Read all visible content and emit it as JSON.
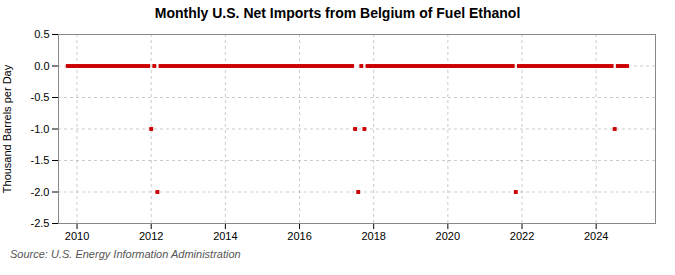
{
  "chart_data": {
    "type": "scatter",
    "title": "Monthly U.S. Net Imports from Belgium of Fuel Ethanol",
    "ylabel": "Thousand Barrels per Day",
    "source": "Source: U.S. Energy Information Administration",
    "color": "#cc0000",
    "marker": "square",
    "grid": true,
    "xlim": [
      2009.5,
      2025.6
    ],
    "xticks": [
      2010,
      2012,
      2014,
      2016,
      2018,
      2020,
      2022,
      2024
    ],
    "ylim": [
      -2.5,
      0.5
    ],
    "yticks": [
      0.5,
      {
        "value": 0.0,
        "label": "0.0"
      },
      -0.5,
      {
        "value": -1.0,
        "label": "-1.0"
      },
      -1.5,
      {
        "value": -2.0,
        "label": "-2.0"
      },
      -2.5
    ],
    "x": [
      2009.75,
      2009.833,
      2009.917,
      2010.0,
      2010.083,
      2010.167,
      2010.25,
      2010.333,
      2010.417,
      2010.5,
      2010.583,
      2010.667,
      2010.75,
      2010.833,
      2010.917,
      2011.0,
      2011.083,
      2011.167,
      2011.25,
      2011.333,
      2011.417,
      2011.5,
      2011.583,
      2011.667,
      2011.75,
      2011.833,
      2011.917,
      2012.0,
      2012.083,
      2012.167,
      2012.25,
      2012.333,
      2012.417,
      2012.5,
      2012.583,
      2012.667,
      2012.75,
      2012.833,
      2012.917,
      2013.0,
      2013.083,
      2013.167,
      2013.25,
      2013.333,
      2013.417,
      2013.5,
      2013.583,
      2013.667,
      2013.75,
      2013.833,
      2013.917,
      2014.0,
      2014.083,
      2014.167,
      2014.25,
      2014.333,
      2014.417,
      2014.5,
      2014.583,
      2014.667,
      2014.75,
      2014.833,
      2014.917,
      2015.0,
      2015.083,
      2015.167,
      2015.25,
      2015.333,
      2015.417,
      2015.5,
      2015.583,
      2015.667,
      2015.75,
      2015.833,
      2015.917,
      2016.0,
      2016.083,
      2016.167,
      2016.25,
      2016.333,
      2016.417,
      2016.5,
      2016.583,
      2016.667,
      2016.75,
      2016.833,
      2016.917,
      2017.0,
      2017.083,
      2017.167,
      2017.25,
      2017.333,
      2017.417,
      2017.5,
      2017.583,
      2017.667,
      2017.75,
      2017.833,
      2017.917,
      2018.0,
      2018.083,
      2018.167,
      2018.25,
      2018.333,
      2018.417,
      2018.5,
      2018.583,
      2018.667,
      2018.75,
      2018.833,
      2018.917,
      2019.0,
      2019.083,
      2019.167,
      2019.25,
      2019.333,
      2019.417,
      2019.5,
      2019.583,
      2019.667,
      2019.75,
      2019.833,
      2019.917,
      2020.0,
      2020.083,
      2020.167,
      2020.25,
      2020.333,
      2020.417,
      2020.5,
      2020.583,
      2020.667,
      2020.75,
      2020.833,
      2020.917,
      2021.0,
      2021.083,
      2021.167,
      2021.25,
      2021.333,
      2021.417,
      2021.5,
      2021.583,
      2021.667,
      2021.75,
      2021.833,
      2021.917,
      2022.0,
      2022.083,
      2022.167,
      2022.25,
      2022.333,
      2022.417,
      2022.5,
      2022.583,
      2022.667,
      2022.75,
      2022.833,
      2022.917,
      2023.0,
      2023.083,
      2023.167,
      2023.25,
      2023.333,
      2023.417,
      2023.5,
      2023.583,
      2023.667,
      2023.75,
      2023.833,
      2023.917,
      2024.0,
      2024.083,
      2024.167,
      2024.25,
      2024.333,
      2024.417,
      2024.5,
      2024.583,
      2024.667,
      2024.75,
      2024.833
    ],
    "values": [
      0,
      0,
      0,
      0,
      0,
      0,
      0,
      0,
      0,
      0,
      0,
      0,
      0,
      0,
      0,
      0,
      0,
      0,
      0,
      0,
      0,
      0,
      0,
      0,
      0,
      0,
      0,
      -1,
      0,
      -2,
      0,
      0,
      0,
      0,
      0,
      0,
      0,
      0,
      0,
      0,
      0,
      0,
      0,
      0,
      0,
      0,
      0,
      0,
      0,
      0,
      0,
      0,
      0,
      0,
      0,
      0,
      0,
      0,
      0,
      0,
      0,
      0,
      0,
      0,
      0,
      0,
      0,
      0,
      0,
      0,
      0,
      0,
      0,
      0,
      0,
      0,
      0,
      0,
      0,
      0,
      0,
      0,
      0,
      0,
      0,
      0,
      0,
      0,
      0,
      0,
      0,
      0,
      0,
      -1,
      -2,
      0,
      -1,
      0,
      0,
      0,
      0,
      0,
      0,
      0,
      0,
      0,
      0,
      0,
      0,
      0,
      0,
      0,
      0,
      0,
      0,
      0,
      0,
      0,
      0,
      0,
      0,
      0,
      0,
      0,
      0,
      0,
      0,
      0,
      0,
      0,
      0,
      0,
      0,
      0,
      0,
      0,
      0,
      0,
      0,
      0,
      0,
      0,
      0,
      0,
      0,
      -2,
      0,
      0,
      0,
      0,
      0,
      0,
      0,
      0,
      0,
      0,
      0,
      0,
      0,
      0,
      0,
      0,
      0,
      0,
      0,
      0,
      0,
      0,
      0,
      0,
      0,
      0,
      0,
      0,
      0,
      0,
      0,
      -1,
      0,
      0,
      0,
      0
    ]
  }
}
